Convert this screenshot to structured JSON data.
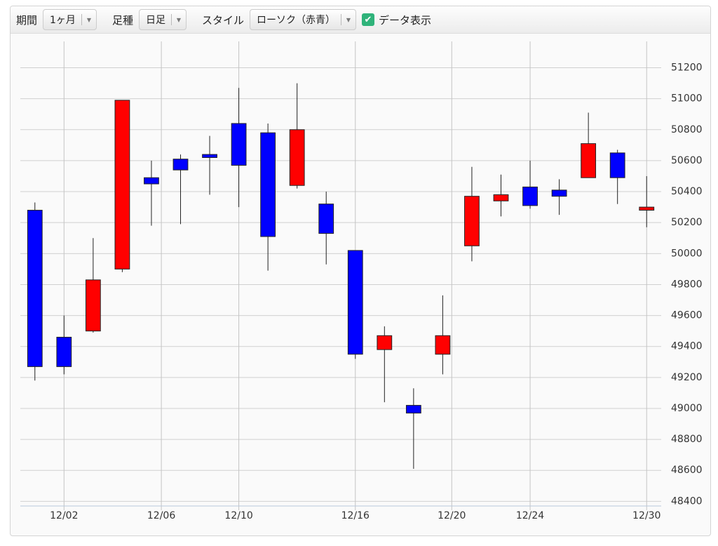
{
  "toolbar": {
    "period_label": "期間",
    "period_value": "1ヶ月",
    "bar_label": "足種",
    "bar_value": "日足",
    "style_label": "スタイル",
    "style_value": "ローソク（赤青）",
    "data_toggle": "データ表示"
  },
  "chart_data": {
    "type": "candlestick",
    "x": [
      0,
      1,
      2,
      3,
      4,
      5,
      6,
      7,
      8,
      9,
      10,
      11,
      12,
      13,
      14,
      15,
      16,
      17,
      18,
      19,
      20,
      21
    ],
    "open": [
      50280,
      49460,
      49500,
      49900,
      50490,
      50610,
      50640,
      50840,
      50780,
      50440,
      50320,
      50020,
      49380,
      49020,
      49350,
      50050,
      50340,
      50430,
      50410,
      50490,
      50650,
      50280
    ],
    "high": [
      50330,
      49600,
      50100,
      50990,
      50600,
      50640,
      50760,
      51070,
      50840,
      51100,
      50400,
      50020,
      49530,
      49130,
      49730,
      50560,
      50510,
      50600,
      50480,
      50910,
      50670,
      50500
    ],
    "low": [
      49180,
      49220,
      49490,
      49880,
      50180,
      50190,
      50380,
      50300,
      49890,
      50420,
      49930,
      49320,
      49040,
      48610,
      49220,
      49950,
      50240,
      50290,
      50250,
      50490,
      50320,
      50170
    ],
    "close": [
      49270,
      49270,
      49830,
      50990,
      50450,
      50540,
      50620,
      50570,
      50110,
      50800,
      50130,
      49350,
      49470,
      48970,
      49470,
      50370,
      50380,
      50310,
      50370,
      50710,
      50490,
      50300
    ],
    "up_color": "#ff0000",
    "down_color": "#0000ff",
    "xlim": [
      -0.5,
      21.5
    ],
    "xticks": [
      {
        "value": 1,
        "label": "12/02"
      },
      {
        "value": 4.34,
        "label": "12/06"
      },
      {
        "value": 7,
        "label": "12/10"
      },
      {
        "value": 11,
        "label": "12/16"
      },
      {
        "value": 14.31,
        "label": "12/20"
      },
      {
        "value": 17,
        "label": "12/24"
      },
      {
        "value": 21,
        "label": "12/30"
      }
    ],
    "ylim": [
      48370,
      51370
    ],
    "yticks": [
      48400,
      48600,
      48800,
      49000,
      49200,
      49400,
      49600,
      49800,
      50000,
      50200,
      50400,
      50600,
      50800,
      51000,
      51200
    ],
    "grid": true
  }
}
